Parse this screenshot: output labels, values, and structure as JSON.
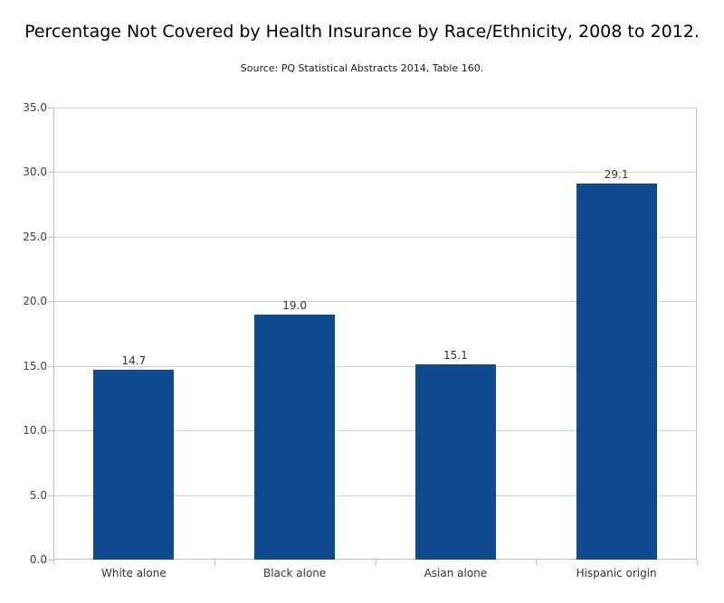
{
  "title": "Percentage Not Covered by Health Insurance by Race/Ethnicity, 2008 to 2012.",
  "subtitle": "Source: PQ Statistical Abstracts 2014, Table 160.",
  "chart_data": {
    "type": "bar",
    "title": "Percentage Not Covered by Health Insurance by Race/Ethnicity, 2008 to 2012.",
    "subtitle": "Source: PQ Statistical Abstracts 2014, Table 160.",
    "categories": [
      "White alone",
      "Black alone",
      "Asian alone",
      "Hispanic origin"
    ],
    "values": [
      14.7,
      19.0,
      15.1,
      29.1
    ],
    "value_labels": [
      "14.7",
      "19.0",
      "15.1",
      "29.1"
    ],
    "xlabel": "",
    "ylabel": "",
    "ylim": [
      0,
      35
    ],
    "ytick_step": 5,
    "ytick_labels": [
      "0.0",
      "5.0",
      "10.0",
      "15.0",
      "20.0",
      "25.0",
      "30.0",
      "35.0"
    ],
    "grid": true,
    "legend_position": "none",
    "colors": {
      "bar": "#0d4a8f",
      "gridline": "#d4d4d4",
      "axis": "#c0c0c0",
      "value_label": "#333333",
      "tick_label": "#404040",
      "title": "#000000",
      "background": "#ffffff"
    }
  }
}
